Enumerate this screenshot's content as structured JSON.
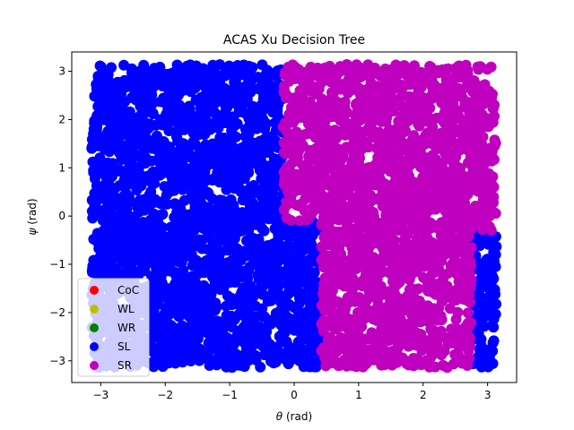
{
  "chart_data": {
    "type": "scatter",
    "title": "ACAS Xu Decision Tree",
    "xlabel_symbol": "θ",
    "xlabel_unit": " (rad)",
    "ylabel_symbol": "ψ",
    "ylabel_unit": " (rad)",
    "xlim": [
      -3.45,
      3.45
    ],
    "ylim": [
      -3.45,
      3.4
    ],
    "xticks": [
      -3,
      -2,
      -1,
      0,
      1,
      2,
      3
    ],
    "yticks": [
      -3,
      -2,
      -1,
      0,
      1,
      2,
      3
    ],
    "grid": false,
    "legend_position": "lower-left",
    "series": [
      {
        "name": "CoC",
        "color": "#ff0000",
        "regions": []
      },
      {
        "name": "WL",
        "color": "#bfbf00",
        "regions": []
      },
      {
        "name": "WR",
        "color": "#008000",
        "regions": []
      },
      {
        "name": "SL",
        "color": "#0000ff",
        "regions": [
          {
            "x": [
              -3.14,
              -0.17
            ],
            "y": [
              -0.1,
              3.14
            ]
          },
          {
            "x": [
              -3.14,
              0.42
            ],
            "y": [
              -3.14,
              -0.1
            ]
          },
          {
            "x": [
              2.75,
              3.14
            ],
            "y": [
              -3.14,
              -0.3
            ]
          }
        ]
      },
      {
        "name": "SR",
        "color": "#bf00bf",
        "regions": [
          {
            "x": [
              -0.17,
              3.14
            ],
            "y": [
              -0.1,
              3.14
            ]
          },
          {
            "x": [
              0.42,
              2.75
            ],
            "y": [
              -3.14,
              -0.1
            ]
          },
          {
            "x": [
              2.75,
              3.14
            ],
            "y": [
              -0.3,
              -0.1
            ]
          }
        ]
      }
    ]
  }
}
